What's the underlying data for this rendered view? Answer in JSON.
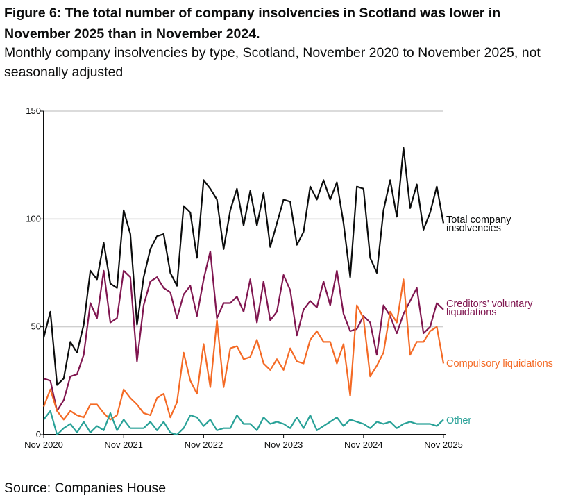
{
  "title": "Figure 6: The total number of company insolvencies in Scotland was lower in November 2025 than in November 2024.",
  "subtitle": "Monthly company insolvencies by type, Scotland, November 2020 to November 2025, not seasonally adjusted",
  "source": "Source: Companies House",
  "chart_data": {
    "type": "line",
    "title": "",
    "xlabel": "",
    "ylabel": "",
    "ylim": [
      0,
      150
    ],
    "yticks": [
      "0",
      "50",
      "100",
      "150"
    ],
    "xticks": [
      "Nov 2020",
      "Nov 2021",
      "Nov 2022",
      "Nov 2023",
      "Nov 2024",
      "Nov 2025"
    ],
    "x_range": [
      "Nov 2020",
      "Nov 2025"
    ],
    "grid": "horizontal",
    "legend": "direct labels at right end of lines",
    "series": [
      {
        "name": "Total company insolvencies",
        "color": "#0b0c0c",
        "values": [
          45,
          57,
          23,
          26,
          43,
          38,
          51,
          76,
          72,
          89,
          70,
          68,
          104,
          93,
          51,
          73,
          86,
          92,
          93,
          75,
          69,
          106,
          103,
          82,
          118,
          114,
          109,
          86,
          104,
          114,
          97,
          113,
          97,
          112,
          87,
          98,
          109,
          108,
          88,
          94,
          115,
          109,
          118,
          109,
          117,
          98,
          73,
          115,
          114,
          82,
          75,
          104,
          118,
          101,
          133,
          105,
          116,
          95,
          103,
          115,
          98
        ]
      },
      {
        "name": "Creditors' voluntary liquidations",
        "color": "#801650",
        "values": [
          26,
          25,
          11,
          16,
          27,
          28,
          37,
          61,
          54,
          76,
          52,
          54,
          76,
          73,
          34,
          60,
          71,
          73,
          68,
          66,
          54,
          65,
          69,
          55,
          72,
          85,
          54,
          61,
          61,
          64,
          57,
          72,
          52,
          71,
          53,
          57,
          74,
          67,
          46,
          58,
          62,
          59,
          71,
          60,
          76,
          56,
          48,
          49,
          55,
          52,
          37,
          60,
          55,
          47,
          56,
          62,
          68,
          47,
          50,
          61,
          58
        ]
      },
      {
        "name": "Compulsory liquidations",
        "color": "#f46a25",
        "values": [
          13,
          21,
          11,
          7,
          11,
          9,
          8,
          14,
          14,
          10,
          7,
          9,
          21,
          17,
          14,
          10,
          9,
          17,
          19,
          8,
          15,
          38,
          25,
          19,
          42,
          22,
          53,
          22,
          40,
          41,
          35,
          36,
          44,
          33,
          30,
          35,
          30,
          40,
          34,
          33,
          44,
          48,
          43,
          43,
          33,
          42,
          18,
          60,
          54,
          27,
          32,
          38,
          57,
          52,
          72,
          37,
          43,
          43,
          48,
          50,
          33
        ]
      },
      {
        "name": "Other",
        "color": "#28a197",
        "values": [
          7,
          11,
          0,
          3,
          5,
          1,
          6,
          1,
          4,
          2,
          10,
          2,
          7,
          3,
          3,
          3,
          6,
          2,
          6,
          1,
          0,
          3,
          9,
          8,
          4,
          7,
          2,
          3,
          3,
          9,
          5,
          5,
          2,
          8,
          5,
          6,
          5,
          3,
          8,
          3,
          9,
          2,
          4,
          6,
          8,
          4,
          7,
          6,
          5,
          3,
          6,
          5,
          6,
          3,
          5,
          6,
          5,
          5,
          5,
          4,
          7
        ]
      }
    ],
    "series_labels": [
      [
        "Total company",
        "insolvencies"
      ],
      [
        "Creditors' voluntary",
        "liquidations"
      ],
      [
        "Compulsory liquidations"
      ],
      [
        "Other"
      ]
    ]
  }
}
